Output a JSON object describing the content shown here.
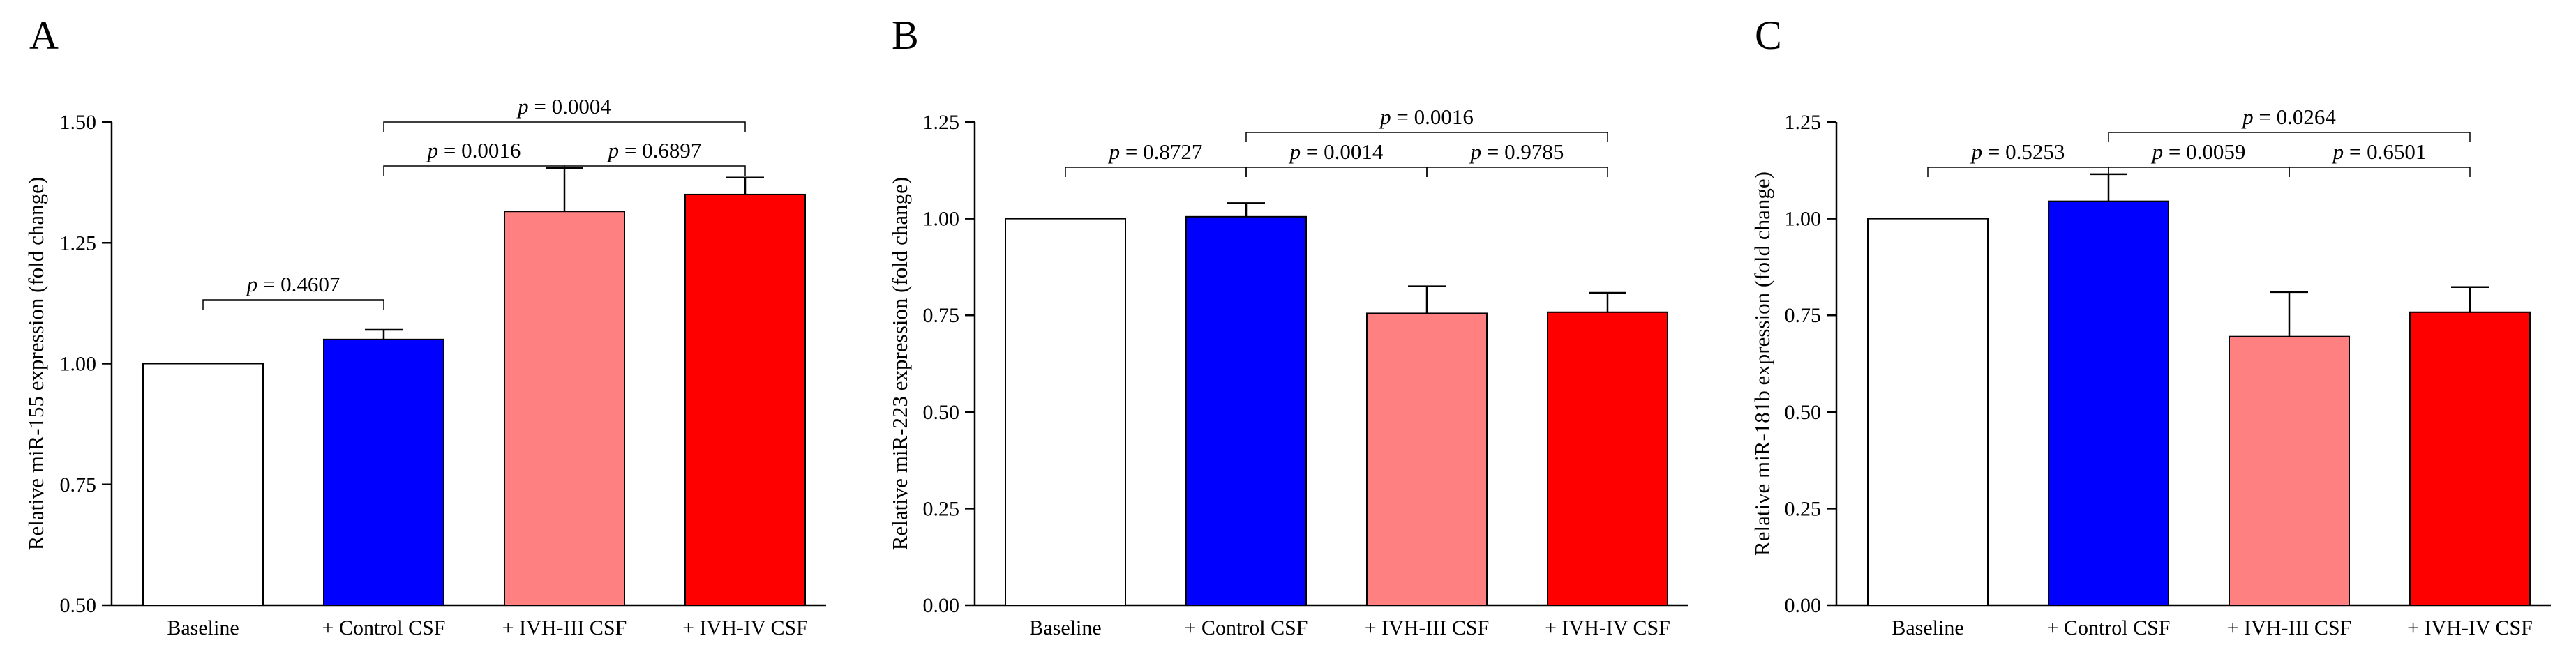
{
  "chart_data": [
    {
      "type": "bar",
      "panel": "A",
      "categories": [
        "Baseline",
        "+ Control CSF",
        "+ IVH-III CSF",
        "+ IVH-IV CSF"
      ],
      "values": [
        1.0,
        1.05,
        1.315,
        1.35
      ],
      "errors": [
        0,
        0.02,
        0.09,
        0.035
      ],
      "colors": [
        "#ffffff",
        "#0000ff",
        "#ff8080",
        "#ff0000"
      ],
      "ylabel": "Relative miR-155 expression (fold change)",
      "xlabel": "",
      "ylim": [
        0.5,
        1.5
      ],
      "yticks": [
        "0.50",
        "0.75",
        "1.00",
        "1.25",
        "1.50"
      ],
      "comparisons": [
        {
          "a": 0,
          "b": 1,
          "level": 0,
          "p_prefix": "p",
          "p_value": "= 0.4607"
        },
        {
          "a": 1,
          "b": 2,
          "level": 1,
          "p_prefix": "p",
          "p_value": "= 0.0016"
        },
        {
          "a": 2,
          "b": 3,
          "level": 1,
          "p_prefix": "p",
          "p_value": "= 0.6897"
        },
        {
          "a": 1,
          "b": 3,
          "level": 2,
          "p_prefix": "p",
          "p_value": "= 0.0004"
        }
      ]
    },
    {
      "type": "bar",
      "panel": "B",
      "categories": [
        "Baseline",
        "+ Control CSF",
        "+ IVH-III CSF",
        "+ IVH-IV CSF"
      ],
      "values": [
        1.0,
        1.005,
        0.755,
        0.758
      ],
      "errors": [
        0,
        0.035,
        0.07,
        0.05
      ],
      "colors": [
        "#ffffff",
        "#0000ff",
        "#ff8080",
        "#ff0000"
      ],
      "ylabel": "Relative miR-223 expression (fold change)",
      "xlabel": "",
      "ylim": [
        0.0,
        1.25
      ],
      "yticks": [
        "0.00",
        "0.25",
        "0.50",
        "0.75",
        "1.00",
        "1.25"
      ],
      "comparisons": [
        {
          "a": 0,
          "b": 1,
          "level": 1,
          "p_prefix": "p",
          "p_value": "= 0.8727"
        },
        {
          "a": 1,
          "b": 2,
          "level": 1,
          "p_prefix": "p",
          "p_value": "= 0.0014"
        },
        {
          "a": 2,
          "b": 3,
          "level": 0,
          "p_prefix": "p",
          "p_value": "= 0.9785"
        },
        {
          "a": 1,
          "b": 3,
          "level": 2,
          "p_prefix": "p",
          "p_value": "= 0.0016"
        }
      ]
    },
    {
      "type": "bar",
      "panel": "C",
      "categories": [
        "Baseline",
        "+ Control CSF",
        "+ IVH-III CSF",
        "+ IVH-IV CSF"
      ],
      "values": [
        1.0,
        1.045,
        0.695,
        0.758
      ],
      "errors": [
        0,
        0.07,
        0.115,
        0.065
      ],
      "colors": [
        "#ffffff",
        "#0000ff",
        "#ff8080",
        "#ff0000"
      ],
      "ylabel": "Relative miR-181b expression (fold change)",
      "xlabel": "",
      "ylim": [
        0.0,
        1.25
      ],
      "yticks": [
        "0.00",
        "0.25",
        "0.50",
        "0.75",
        "1.00",
        "1.25"
      ],
      "comparisons": [
        {
          "a": 0,
          "b": 1,
          "level": 1,
          "p_prefix": "p",
          "p_value": "= 0.5253"
        },
        {
          "a": 1,
          "b": 2,
          "level": 1,
          "p_prefix": "p",
          "p_value": "= 0.0059"
        },
        {
          "a": 2,
          "b": 3,
          "level": 0,
          "p_prefix": "p",
          "p_value": "= 0.6501"
        },
        {
          "a": 1,
          "b": 3,
          "level": 2,
          "p_prefix": "p",
          "p_value": "= 0.0264"
        }
      ]
    }
  ]
}
